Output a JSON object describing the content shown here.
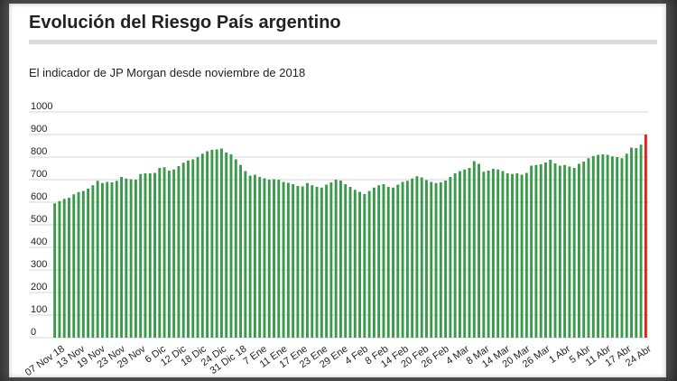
{
  "header": {
    "title": "Evolución del Riesgo País argentino",
    "subtitle": "El indicador de JP Morgan desde noviembre de 2018"
  },
  "colors": {
    "bar": "#3a9a4a",
    "highlight_bar": "#e0201c",
    "grid": "#d6d6d6",
    "title_rule": "#d9d9d9"
  },
  "chart_data": {
    "type": "bar",
    "title": "Evolución del Riesgo País argentino",
    "subtitle": "El indicador de JP Morgan desde noviembre de 2018",
    "xlabel": "",
    "ylabel": "",
    "ylim": [
      0,
      1000
    ],
    "yticks": [
      0,
      100,
      200,
      300,
      400,
      500,
      600,
      700,
      800,
      900,
      1000
    ],
    "grid": true,
    "x_tick_labels": [
      "07 Nov 18",
      "13 Nov",
      "19 Nov",
      "23 Nov",
      "29 Nov",
      "6 Dic",
      "12 Dic",
      "18 Dic",
      "24 Dic",
      "31 Dic 18",
      "7 Ene",
      "11 Ene",
      "17 Ene",
      "23 Ene",
      "29 Ene",
      "4 Feb",
      "8 Feb",
      "14 Feb",
      "20 Feb",
      "26 Feb",
      "4 Mar",
      "8 Mar",
      "14 Mar",
      "20 Mar",
      "26 Mar",
      "1 Abr",
      "5 Abr",
      "11 Abr",
      "17 Abr",
      "24 Abr"
    ],
    "values": [
      595,
      605,
      615,
      620,
      635,
      645,
      650,
      660,
      675,
      695,
      685,
      690,
      688,
      695,
      712,
      705,
      702,
      700,
      725,
      728,
      728,
      730,
      752,
      755,
      740,
      745,
      760,
      775,
      785,
      790,
      800,
      815,
      826,
      832,
      834,
      838,
      820,
      812,
      790,
      765,
      738,
      718,
      722,
      712,
      706,
      700,
      702,
      700,
      690,
      686,
      680,
      672,
      670,
      685,
      675,
      668,
      665,
      678,
      688,
      700,
      696,
      680,
      668,
      655,
      646,
      636,
      650,
      665,
      675,
      680,
      668,
      665,
      678,
      690,
      695,
      705,
      715,
      710,
      698,
      690,
      685,
      688,
      696,
      712,
      728,
      738,
      745,
      752,
      782,
      770,
      735,
      740,
      748,
      745,
      738,
      728,
      725,
      728,
      722,
      730,
      762,
      765,
      768,
      776,
      788,
      772,
      762,
      765,
      758,
      752,
      770,
      780,
      795,
      805,
      810,
      812,
      810,
      803,
      800,
      795,
      815,
      842,
      840,
      855,
      900
    ],
    "highlight_last": true
  }
}
